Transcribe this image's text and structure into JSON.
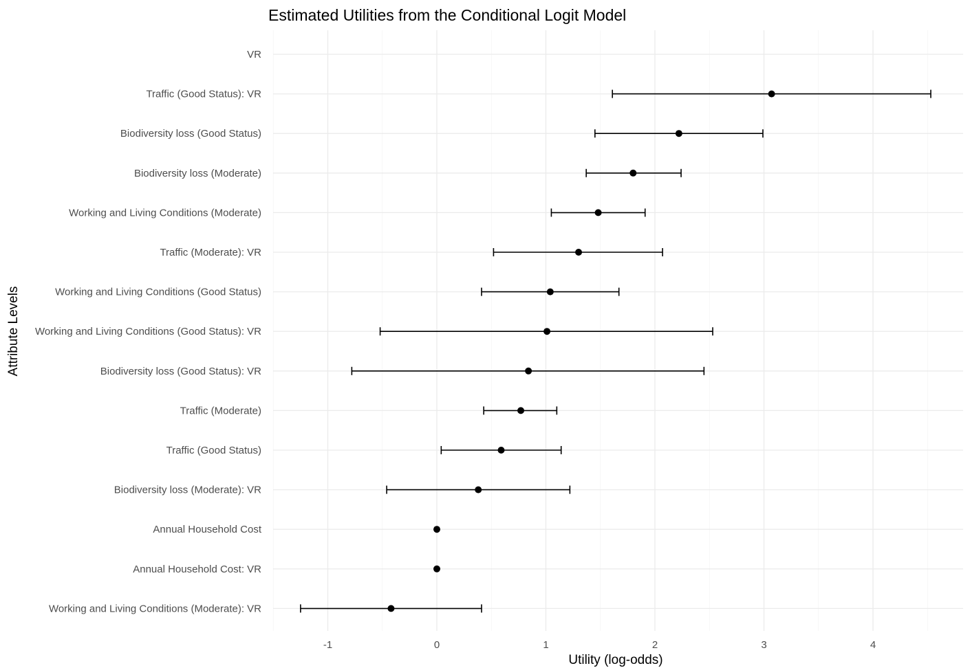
{
  "chart_data": {
    "type": "scatter",
    "title": "Estimated Utilities from the Conditional Logit Model",
    "xlabel": "Utility (log-odds)",
    "ylabel": "Attribute Levels",
    "xlim": [
      -1.5,
      4.8
    ],
    "xticks": [
      -1,
      0,
      1,
      2,
      3,
      4
    ],
    "grid": true,
    "legend": "none",
    "point_color": "#000000",
    "grid_color": "#ebebeb",
    "categories": [
      "VR",
      "Traffic (Good Status): VR",
      "Biodiversity loss (Good Status)",
      "Biodiversity loss (Moderate)",
      "Working and Living Conditions (Moderate)",
      "Traffic (Moderate): VR",
      "Working and Living Conditions (Good Status)",
      "Working and Living Conditions (Good Status): VR",
      "Biodiversity loss (Good Status): VR",
      "Traffic (Moderate)",
      "Traffic (Good Status)",
      "Biodiversity loss (Moderate): VR",
      "Annual Household Cost",
      "Annual Household Cost: VR",
      "Working and Living Conditions (Moderate): VR"
    ],
    "points": [
      {
        "label": "VR",
        "estimate": null,
        "lower": null,
        "upper": null
      },
      {
        "label": "Traffic (Good Status): VR",
        "estimate": 3.07,
        "lower": 1.61,
        "upper": 4.53
      },
      {
        "label": "Biodiversity loss (Good Status)",
        "estimate": 2.22,
        "lower": 1.45,
        "upper": 2.99
      },
      {
        "label": "Biodiversity loss (Moderate)",
        "estimate": 1.8,
        "lower": 1.37,
        "upper": 2.24
      },
      {
        "label": "Working and Living Conditions (Moderate)",
        "estimate": 1.48,
        "lower": 1.05,
        "upper": 1.91
      },
      {
        "label": "Traffic (Moderate): VR",
        "estimate": 1.3,
        "lower": 0.52,
        "upper": 2.07
      },
      {
        "label": "Working and Living Conditions (Good Status)",
        "estimate": 1.04,
        "lower": 0.41,
        "upper": 1.67
      },
      {
        "label": "Working and Living Conditions (Good Status): VR",
        "estimate": 1.01,
        "lower": -0.52,
        "upper": 2.53
      },
      {
        "label": "Biodiversity loss (Good Status): VR",
        "estimate": 0.84,
        "lower": -0.78,
        "upper": 2.45
      },
      {
        "label": "Traffic (Moderate)",
        "estimate": 0.77,
        "lower": 0.43,
        "upper": 1.1
      },
      {
        "label": "Traffic (Good Status)",
        "estimate": 0.59,
        "lower": 0.04,
        "upper": 1.14
      },
      {
        "label": "Biodiversity loss (Moderate): VR",
        "estimate": 0.38,
        "lower": -0.46,
        "upper": 1.22
      },
      {
        "label": "Annual Household Cost",
        "estimate": 0.0,
        "lower": 0.0,
        "upper": 0.0
      },
      {
        "label": "Annual Household Cost: VR",
        "estimate": 0.0,
        "lower": 0.0,
        "upper": 0.0
      },
      {
        "label": "Working and Living Conditions (Moderate): VR",
        "estimate": -0.42,
        "lower": -1.25,
        "upper": 0.41
      }
    ]
  }
}
